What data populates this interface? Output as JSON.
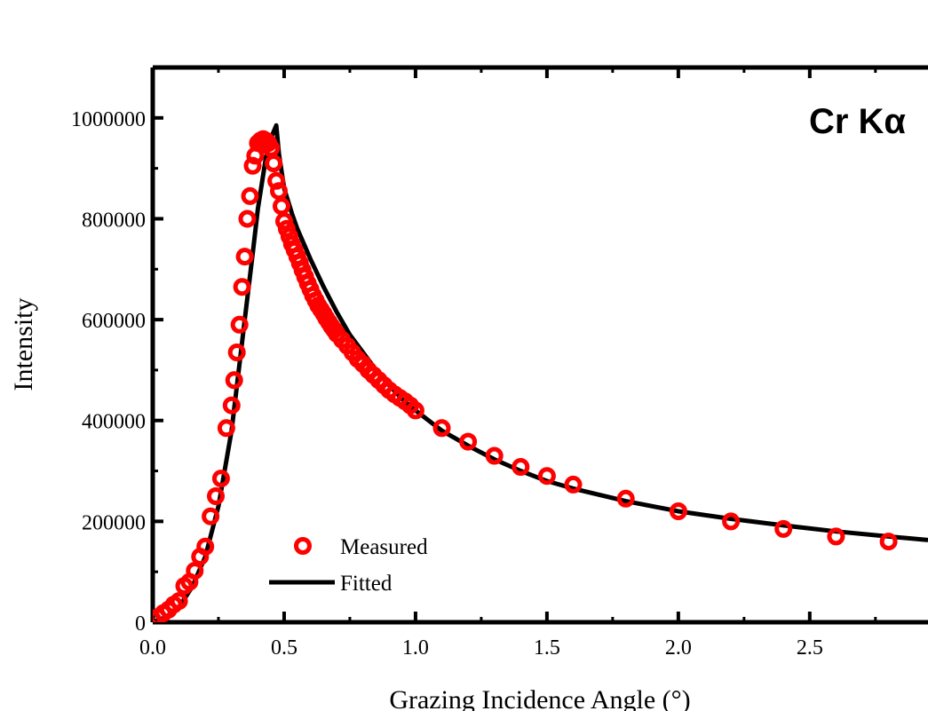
{
  "chart_data": {
    "type": "scatter",
    "title": "",
    "xlabel": "Grazing Incidence Angle (°)",
    "ylabel": "Intensity",
    "xlim": [
      0.0,
      2.95
    ],
    "ylim": [
      0,
      1100000
    ],
    "x_ticks": [
      0.0,
      0.5,
      1.0,
      1.5,
      2.0,
      2.5
    ],
    "x_tick_labels": [
      "0.0",
      "0.5",
      "1.0",
      "1.5",
      "2.0",
      "2.5"
    ],
    "y_ticks": [
      0,
      200000,
      400000,
      600000,
      800000,
      1000000
    ],
    "y_tick_labels": [
      "0",
      "200000",
      "400000",
      "600000",
      "800000",
      "1000000"
    ],
    "annotation": "Cr Kα",
    "grid": false,
    "legend_position": "bottom-left",
    "series": [
      {
        "name": "Measured",
        "kind": "markers",
        "marker": "open-circle",
        "color": "#ff0000",
        "x": [
          0.0,
          0.02,
          0.04,
          0.06,
          0.08,
          0.1,
          0.12,
          0.14,
          0.16,
          0.18,
          0.2,
          0.22,
          0.24,
          0.26,
          0.28,
          0.3,
          0.31,
          0.32,
          0.33,
          0.34,
          0.35,
          0.36,
          0.37,
          0.38,
          0.39,
          0.4,
          0.41,
          0.42,
          0.43,
          0.44,
          0.45,
          0.46,
          0.47,
          0.48,
          0.49,
          0.5,
          0.51,
          0.52,
          0.53,
          0.54,
          0.55,
          0.56,
          0.57,
          0.58,
          0.59,
          0.6,
          0.61,
          0.62,
          0.63,
          0.64,
          0.65,
          0.66,
          0.67,
          0.68,
          0.69,
          0.7,
          0.72,
          0.74,
          0.76,
          0.78,
          0.8,
          0.82,
          0.84,
          0.86,
          0.88,
          0.9,
          0.92,
          0.94,
          0.96,
          0.98,
          1.0,
          1.1,
          1.2,
          1.3,
          1.4,
          1.5,
          1.6,
          1.8,
          2.0,
          2.2,
          2.4,
          2.6,
          2.8
        ],
        "y": [
          5000,
          10000,
          18000,
          25000,
          35000,
          42000,
          72000,
          80000,
          102000,
          130000,
          150000,
          210000,
          250000,
          285000,
          385000,
          430000,
          480000,
          535000,
          590000,
          665000,
          725000,
          800000,
          845000,
          905000,
          925000,
          950000,
          955000,
          958000,
          955000,
          950000,
          940000,
          910000,
          875000,
          855000,
          825000,
          795000,
          780000,
          765000,
          750000,
          738000,
          725000,
          712000,
          698000,
          685000,
          672000,
          660000,
          648000,
          638000,
          628000,
          620000,
          612000,
          603000,
          595000,
          587000,
          580000,
          572000,
          560000,
          548000,
          535000,
          522000,
          512000,
          500000,
          490000,
          480000,
          470000,
          460000,
          452000,
          445000,
          438000,
          430000,
          420000,
          385000,
          358000,
          330000,
          308000,
          290000,
          273000,
          245000,
          220000,
          200000,
          185000,
          170000,
          160000
        ]
      },
      {
        "name": "Fitted",
        "kind": "line",
        "color": "#000000",
        "x": [
          0.0,
          0.05,
          0.1,
          0.15,
          0.2,
          0.25,
          0.3,
          0.35,
          0.38,
          0.4,
          0.43,
          0.45,
          0.47,
          0.48,
          0.5,
          0.53,
          0.55,
          0.6,
          0.65,
          0.7,
          0.75,
          0.8,
          0.85,
          0.9,
          0.95,
          1.0,
          1.1,
          1.2,
          1.3,
          1.4,
          1.5,
          1.6,
          1.8,
          2.0,
          2.2,
          2.4,
          2.6,
          2.8,
          2.95
        ],
        "y": [
          0,
          10000,
          30000,
          70000,
          130000,
          230000,
          380000,
          600000,
          730000,
          820000,
          920000,
          960000,
          985000,
          930000,
          860000,
          810000,
          780000,
          720000,
          665000,
          615000,
          570000,
          535000,
          500000,
          470000,
          442000,
          420000,
          380000,
          350000,
          323000,
          300000,
          280000,
          265000,
          240000,
          220000,
          205000,
          192000,
          180000,
          170000,
          163000
        ]
      }
    ]
  }
}
